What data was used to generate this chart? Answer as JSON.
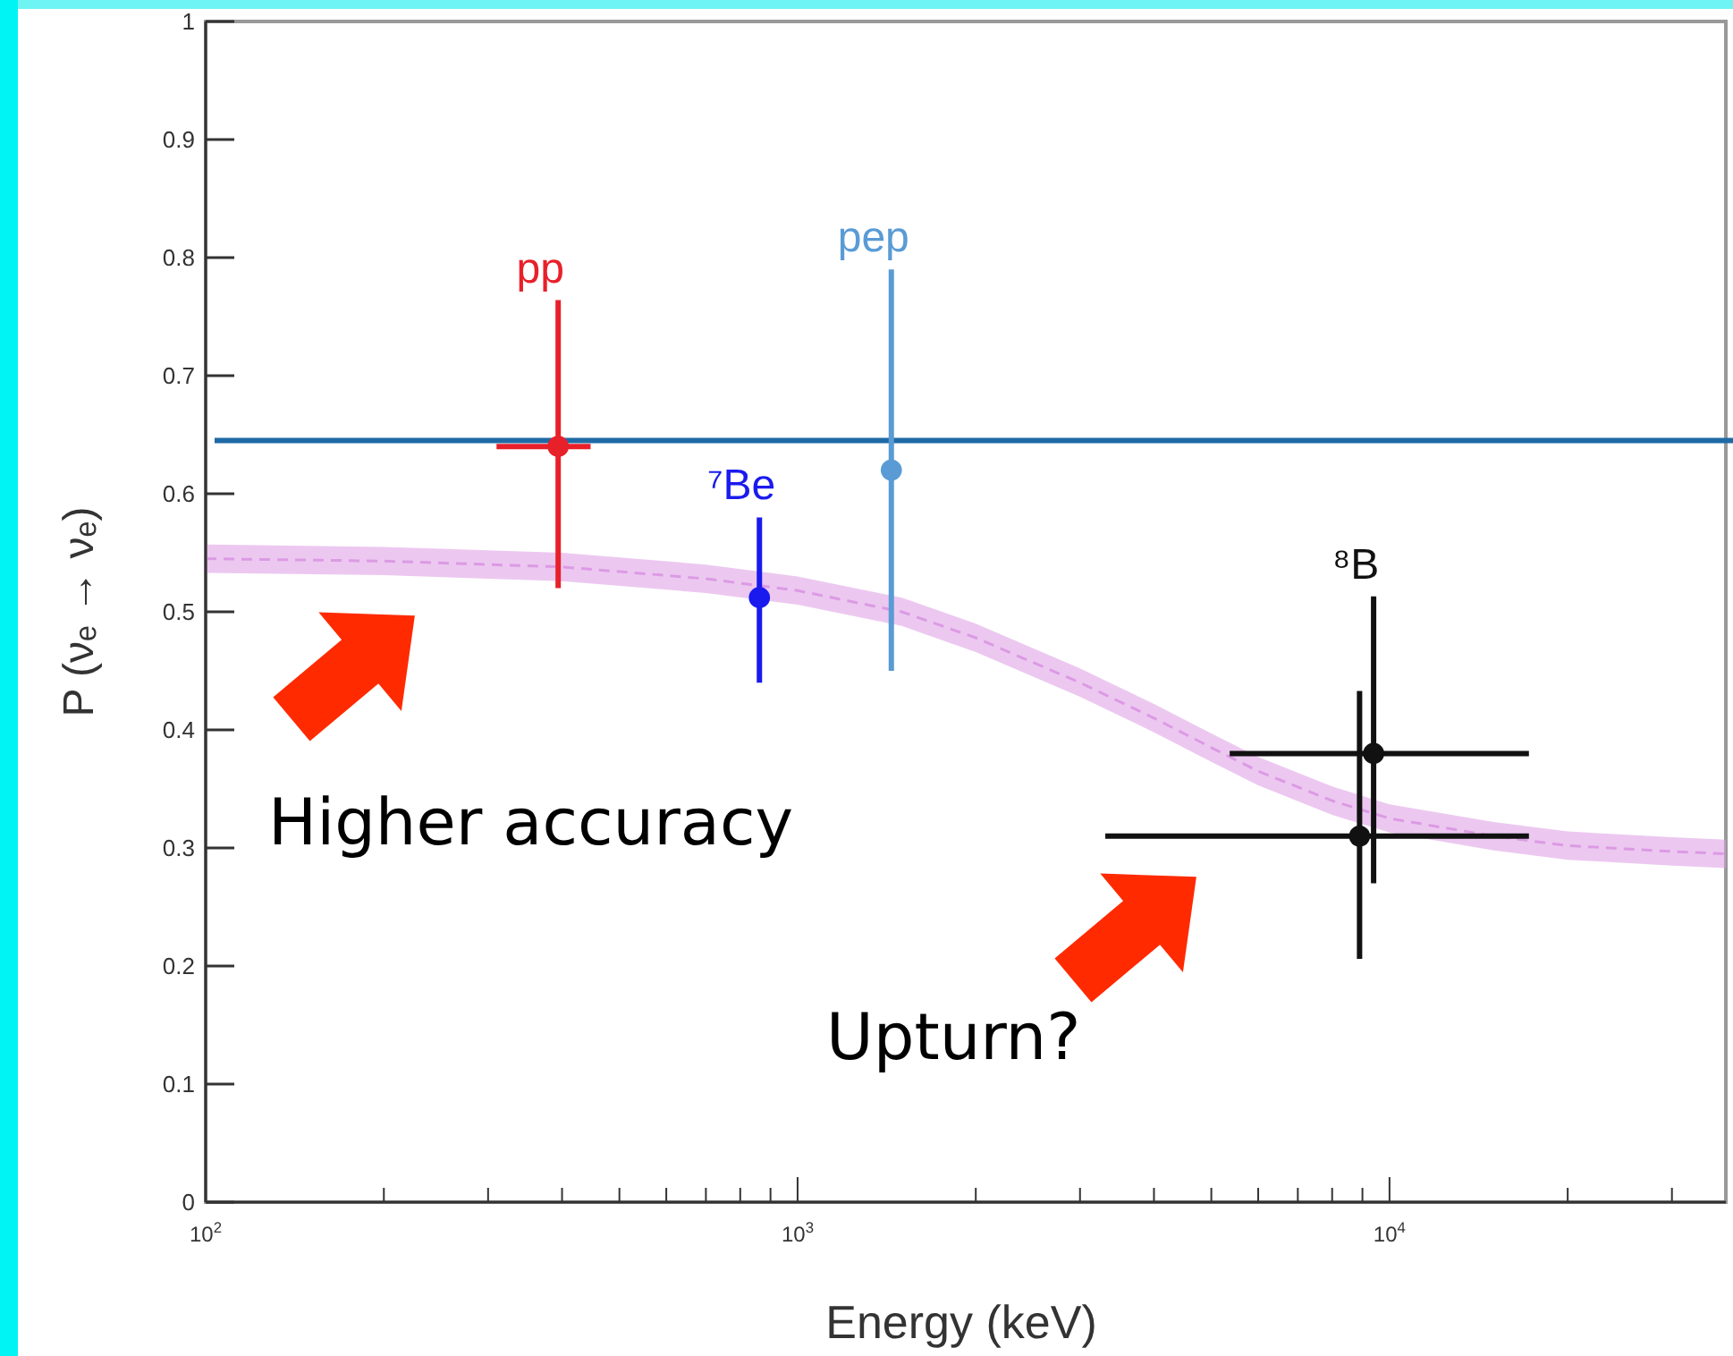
{
  "chart_data": {
    "type": "scatter",
    "xlabel": "Energy (keV)",
    "ylabel": "P (νₑ → νₑ)",
    "log": "x",
    "xlim": [
      100,
      37000
    ],
    "ylim": [
      0,
      1
    ],
    "xticks": [
      {
        "value": 100,
        "label": "10$^{2}$"
      },
      {
        "value": 200,
        "label": null
      },
      {
        "value": 300,
        "label": null
      },
      {
        "value": 400,
        "label": null
      },
      {
        "value": 500,
        "label": null
      },
      {
        "value": 600,
        "label": null
      },
      {
        "value": 700,
        "label": null
      },
      {
        "value": 800,
        "label": null
      },
      {
        "value": 900,
        "label": null
      },
      {
        "value": 1000,
        "label": "10$^{3}$"
      },
      {
        "value": 2000,
        "label": null
      },
      {
        "value": 3000,
        "label": null
      },
      {
        "value": 4000,
        "label": null
      },
      {
        "value": 5000,
        "label": null
      },
      {
        "value": 6000,
        "label": null
      },
      {
        "value": 7000,
        "label": null
      },
      {
        "value": 8000,
        "label": null
      },
      {
        "value": 9000,
        "label": null
      },
      {
        "value": 10000,
        "label": "10$^{4}$"
      },
      {
        "value": 20000,
        "label": null
      },
      {
        "value": 30000,
        "label": null
      }
    ],
    "yticks": [
      0,
      0.1,
      0.2,
      0.3,
      0.4,
      0.5,
      0.6,
      0.7,
      0.8,
      0.9,
      1
    ],
    "series": [
      {
        "type": "line",
        "color": "#dc9ae4",
        "line_style": "dashed",
        "x": [
          100,
          200,
          400,
          700,
          1000,
          1500,
          2000,
          3000,
          4000,
          5000,
          6000,
          8000,
          10000,
          15000,
          20000,
          30000,
          37000
        ],
        "values": [
          0.545,
          0.543,
          0.538,
          0.528,
          0.518,
          0.5,
          0.478,
          0.44,
          0.41,
          0.385,
          0.365,
          0.34,
          0.325,
          0.31,
          0.302,
          0.297,
          0.295
        ],
        "lower": [
          0.533,
          0.531,
          0.526,
          0.516,
          0.506,
          0.488,
          0.466,
          0.428,
          0.398,
          0.373,
          0.353,
          0.328,
          0.313,
          0.298,
          0.29,
          0.285,
          0.283
        ],
        "upper": [
          0.557,
          0.555,
          0.55,
          0.54,
          0.53,
          0.512,
          0.49,
          0.452,
          0.422,
          0.397,
          0.377,
          0.352,
          0.337,
          0.322,
          0.314,
          0.309,
          0.307
        ]
      },
      {
        "name": "pp",
        "color": "#e8202a",
        "marker": "circle",
        "x": [
          394
        ],
        "values": [
          0.64
        ],
        "errors": [
          [
            0.52,
            0.764
          ]
        ],
        "xerrors": [
          [
            310,
            447
          ]
        ]
      },
      {
        "name": "⁷Be",
        "color": "#1a1aee",
        "marker": "circle",
        "x": [
          862
        ],
        "values": [
          0.512
        ],
        "errors": [
          [
            0.44,
            0.58
          ]
        ]
      },
      {
        "name": "pep",
        "color": "#5a9bd5",
        "marker": "circle",
        "x": [
          1440
        ],
        "values": [
          0.62
        ],
        "errors": [
          [
            0.45,
            0.79
          ]
        ]
      },
      {
        "name": "⁸B",
        "color": "#111111",
        "marker": "circle",
        "x": [
          9400,
          8900
        ],
        "values": [
          0.38,
          0.31
        ],
        "errors": [
          [
            0.27,
            0.513
          ],
          [
            0.206,
            0.433
          ]
        ],
        "xerrors": [
          [
            5370,
            17200
          ],
          [
            3310,
            17200
          ]
        ]
      }
    ],
    "ref_lines": [
      {
        "axis": "y",
        "value": 0.645,
        "color": "#1f6aa5"
      }
    ],
    "annotations": [
      "Higher accuracy",
      "Upturn?"
    ]
  }
}
